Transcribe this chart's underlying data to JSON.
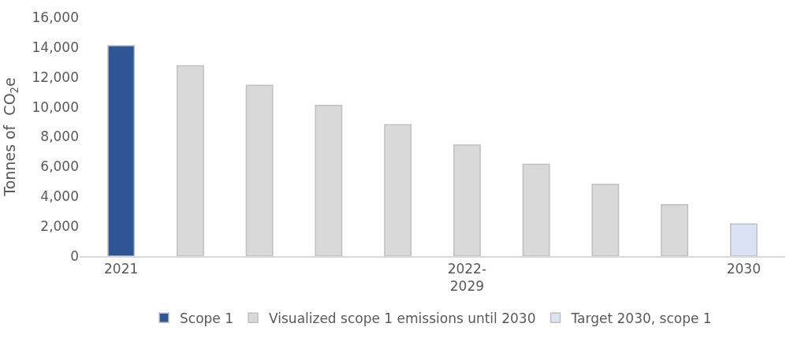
{
  "chart_data": {
    "type": "bar",
    "ylabel": "Tonnes of  CO$_{2}$e",
    "categories": [
      "2021",
      null,
      null,
      null,
      null,
      "2022-2029",
      null,
      null,
      null,
      "2030"
    ],
    "series": [
      {
        "name": "Scope 1",
        "color": "#2f5597",
        "values": [
          14100,
          null,
          null,
          null,
          null,
          null,
          null,
          null,
          null,
          null
        ]
      },
      {
        "name": "Visualized scope 1 emissions until 2030",
        "color": "#d9d9d9",
        "values": [
          null,
          12750,
          11450,
          10100,
          8800,
          7450,
          6150,
          4800,
          3450,
          null
        ]
      },
      {
        "name": "Target 2030, scope 1",
        "color": "#dae3f3",
        "values": [
          null,
          null,
          null,
          null,
          null,
          null,
          null,
          null,
          null,
          2150
        ]
      }
    ],
    "ylim": [
      0,
      16000
    ],
    "yticks": [
      {
        "value": 0,
        "label": "0"
      },
      {
        "value": 2000,
        "label": "2,000"
      },
      {
        "value": 4000,
        "label": "4,000"
      },
      {
        "value": 6000,
        "label": "6,000"
      },
      {
        "value": 8000,
        "label": "8,000"
      },
      {
        "value": 10000,
        "label": "10,000"
      },
      {
        "value": 12000,
        "label": "12,000"
      },
      {
        "value": 14000,
        "label": "14,000"
      },
      {
        "value": 16000,
        "label": "16,000"
      }
    ],
    "legend": "bottom"
  }
}
